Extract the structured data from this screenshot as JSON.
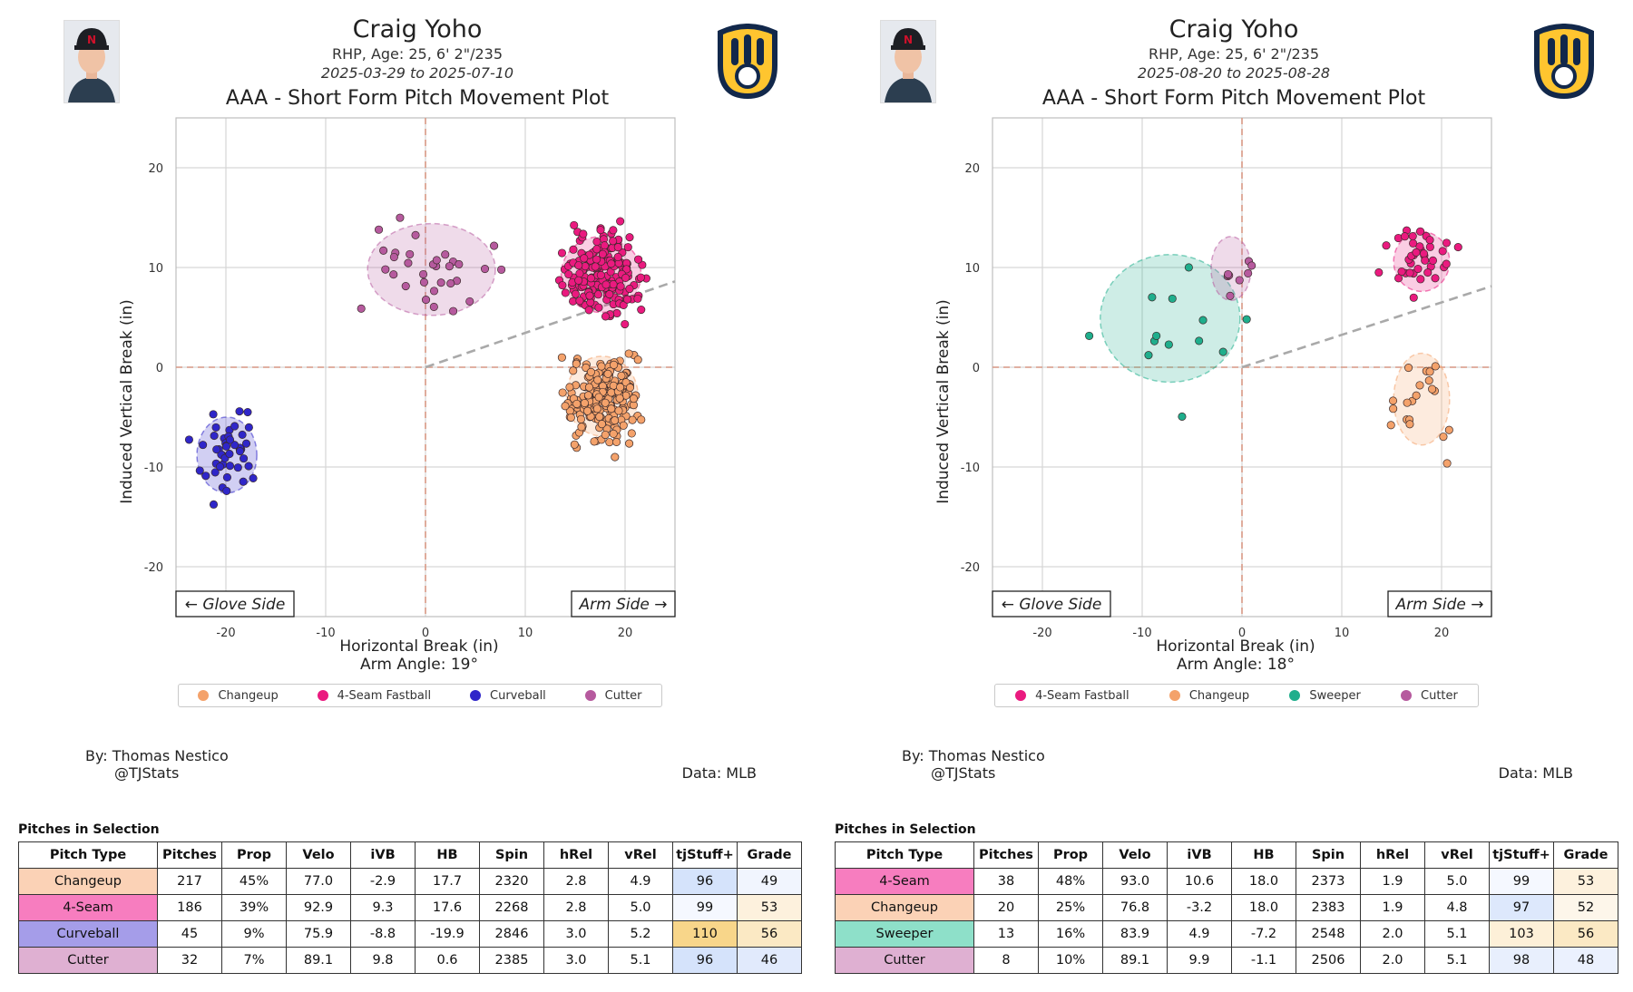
{
  "panels": [
    {
      "pitcher": "Craig Yoho",
      "bio": "RHP, Age: 25, 6' 2\"/235",
      "dates": "2025-03-29 to 2025-07-10",
      "plot_title": "AAA - Short Form Pitch Movement Plot",
      "arm_angle_label": "Arm Angle: 19°",
      "glove_side": "← Glove Side",
      "arm_side": "Arm Side →",
      "byline": "By: Thomas Nestico",
      "handle": "@TJStats",
      "data_source": "Data: MLB",
      "table_caption": "Pitches in Selection"
    },
    {
      "pitcher": "Craig Yoho",
      "bio": "RHP, Age: 25, 6' 2\"/235",
      "dates": "2025-08-20 to 2025-08-28",
      "plot_title": "AAA - Short Form Pitch Movement Plot",
      "arm_angle_label": "Arm Angle: 18°",
      "glove_side": "← Glove Side",
      "arm_side": "Arm Side →",
      "byline": "By: Thomas Nestico",
      "handle": "@TJStats",
      "data_source": "Data: MLB",
      "table_caption": "Pitches in Selection"
    }
  ],
  "table_headers": [
    "Pitch Type",
    "Pitches",
    "Prop",
    "Velo",
    "iVB",
    "HB",
    "Spin",
    "hRel",
    "vRel",
    "tjStuff+",
    "Grade"
  ],
  "colors": {
    "Changeup": "#f4a26b",
    "4-Seam": "#ea1a7f",
    "Curveball": "#2f26c9",
    "Cutter": "#b65a9e",
    "Sweeper": "#1fae8c",
    "row_Changeup": "#fbd2b6",
    "row_4-Seam": "#f77dbf",
    "row_Curveball": "#a59de9",
    "row_Cutter": "#dfb0d2",
    "row_Sweeper": "#8ee0c9"
  },
  "chart_data": [
    {
      "type": "scatter",
      "title": "AAA - Short Form Pitch Movement Plot",
      "xlabel": "Horizontal Break (in)",
      "ylabel": "Induced Vertical Break (in)",
      "xlim": [
        -25,
        25
      ],
      "ylim": [
        -25,
        25
      ],
      "xticks": [
        -20,
        -10,
        0,
        10,
        20
      ],
      "yticks": [
        -20,
        -10,
        0,
        10,
        20
      ],
      "arm_angle_deg": 19,
      "legend": [
        "Changeup",
        "4-Seam Fastball",
        "Curveball",
        "Cutter"
      ],
      "series": [
        {
          "name": "Changeup",
          "center": [
            17.7,
            -2.9
          ],
          "sd": [
            1.8,
            2.0
          ],
          "n": 217
        },
        {
          "name": "4-Seam Fastball",
          "center": [
            17.6,
            9.3
          ],
          "sd": [
            2.0,
            1.9
          ],
          "n": 186
        },
        {
          "name": "Curveball",
          "center": [
            -19.9,
            -8.8
          ],
          "sd": [
            1.5,
            1.9
          ],
          "n": 45
        },
        {
          "name": "Cutter",
          "center": [
            0.6,
            9.8
          ],
          "sd": [
            3.2,
            2.3
          ],
          "n": 32
        }
      ]
    },
    {
      "type": "scatter",
      "title": "AAA - Short Form Pitch Movement Plot",
      "xlabel": "Horizontal Break (in)",
      "ylabel": "Induced Vertical Break (in)",
      "xlim": [
        -25,
        25
      ],
      "ylim": [
        -25,
        25
      ],
      "xticks": [
        -20,
        -10,
        0,
        10,
        20
      ],
      "yticks": [
        -20,
        -10,
        0,
        10,
        20
      ],
      "arm_angle_deg": 18,
      "legend": [
        "4-Seam Fastball",
        "Changeup",
        "Sweeper",
        "Cutter"
      ],
      "series": [
        {
          "name": "4-Seam Fastball",
          "center": [
            18.0,
            10.6
          ],
          "sd": [
            1.4,
            1.5
          ],
          "n": 38
        },
        {
          "name": "Changeup",
          "center": [
            18.0,
            -3.2
          ],
          "sd": [
            1.4,
            2.3
          ],
          "n": 20
        },
        {
          "name": "Sweeper",
          "center": [
            -7.2,
            4.9
          ],
          "sd": [
            3.5,
            3.2
          ],
          "n": 13
        },
        {
          "name": "Cutter",
          "center": [
            -1.1,
            9.9
          ],
          "sd": [
            1.0,
            1.6
          ],
          "n": 8
        }
      ]
    }
  ],
  "tables": [
    {
      "rows": [
        {
          "type": "Changeup",
          "vals": [
            "217",
            "45%",
            "77.0",
            "-2.9",
            "17.7",
            "2320",
            "2.8",
            "4.9",
            "96",
            "49"
          ],
          "stuff_bg": "#d5e3fb",
          "grade_bg": "#f1f5fe"
        },
        {
          "type": "4-Seam",
          "vals": [
            "186",
            "39%",
            "92.9",
            "9.3",
            "17.6",
            "2268",
            "2.8",
            "5.0",
            "99",
            "53"
          ],
          "stuff_bg": "#f5f8ff",
          "grade_bg": "#fdf1dd"
        },
        {
          "type": "Curveball",
          "vals": [
            "45",
            "9%",
            "75.9",
            "-8.8",
            "-19.9",
            "2846",
            "3.0",
            "5.2",
            "110",
            "56"
          ],
          "stuff_bg": "#f8d68a",
          "grade_bg": "#fbe9c4"
        },
        {
          "type": "Cutter",
          "vals": [
            "32",
            "7%",
            "89.1",
            "9.8",
            "0.6",
            "2385",
            "3.0",
            "5.1",
            "96",
            "46"
          ],
          "stuff_bg": "#d5e3fb",
          "grade_bg": "#e1eafc"
        }
      ]
    },
    {
      "rows": [
        {
          "type": "4-Seam",
          "vals": [
            "38",
            "48%",
            "93.0",
            "10.6",
            "18.0",
            "2373",
            "1.9",
            "5.0",
            "99",
            "53"
          ],
          "stuff_bg": "#f5f8ff",
          "grade_bg": "#fdf1dd"
        },
        {
          "type": "Changeup",
          "vals": [
            "20",
            "25%",
            "76.8",
            "-3.2",
            "18.0",
            "2383",
            "1.9",
            "4.8",
            "97",
            "52"
          ],
          "stuff_bg": "#dde8fc",
          "grade_bg": "#fdf6ea"
        },
        {
          "type": "Sweeper",
          "vals": [
            "13",
            "16%",
            "83.9",
            "4.9",
            "-7.2",
            "2548",
            "2.0",
            "5.1",
            "103",
            "56"
          ],
          "stuff_bg": "#fdf0d8",
          "grade_bg": "#fbe9c4"
        },
        {
          "type": "Cutter",
          "vals": [
            "8",
            "10%",
            "89.1",
            "9.9",
            "-1.1",
            "2506",
            "2.0",
            "5.1",
            "98",
            "48"
          ],
          "stuff_bg": "#e8effd",
          "grade_bg": "#ebf1fe"
        }
      ]
    }
  ]
}
